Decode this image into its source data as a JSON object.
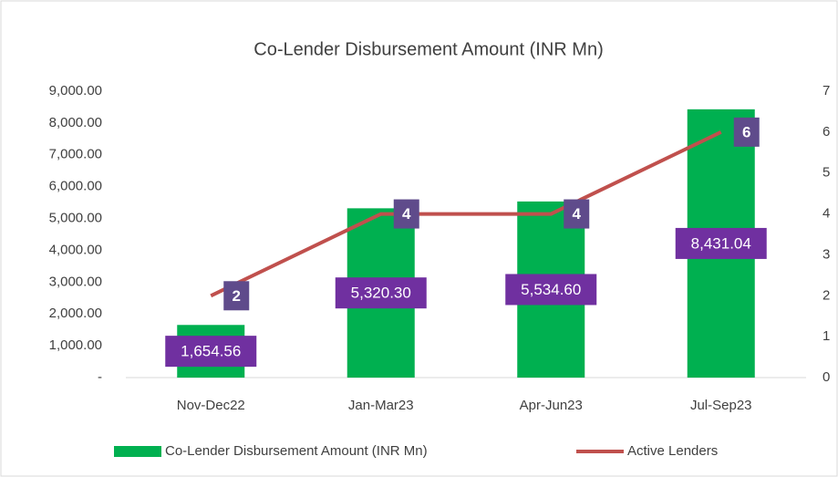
{
  "chart_data": {
    "type": "bar",
    "title": "Co-Lender Disbursement Amount (INR Mn)",
    "categories": [
      "Nov-Dec22",
      "Jan-Mar23",
      "Apr-Jun23",
      "Jul-Sep23"
    ],
    "series": [
      {
        "name": "Co-Lender Disbursement Amount (INR Mn)",
        "type": "bar",
        "color": "#00b050",
        "values": [
          1654.56,
          5320.3,
          5534.6,
          8431.04
        ],
        "value_labels": [
          "1,654.56",
          "5,320.30",
          "5,534.60",
          "8,431.04"
        ],
        "label_color": "#7030a0"
      },
      {
        "name": "Active Lenders",
        "type": "line",
        "axis": "y2",
        "color": "#c0504d",
        "values": [
          2,
          4,
          4,
          6
        ],
        "label_color": "#5f4b8b"
      }
    ],
    "ylim": [
      0,
      9000
    ],
    "yticks": [
      {
        "value": 0,
        "label": "-"
      },
      {
        "value": 1000,
        "label": "1,000.00"
      },
      {
        "value": 2000,
        "label": "2,000.00"
      },
      {
        "value": 3000,
        "label": "3,000.00"
      },
      {
        "value": 4000,
        "label": "4,000.00"
      },
      {
        "value": 5000,
        "label": "5,000.00"
      },
      {
        "value": 6000,
        "label": "6,000.00"
      },
      {
        "value": 7000,
        "label": "7,000.00"
      },
      {
        "value": 8000,
        "label": "8,000.00"
      },
      {
        "value": 9000,
        "label": "9,000.00"
      }
    ],
    "y2lim": [
      0,
      7
    ],
    "y2ticks": [
      0,
      1,
      2,
      3,
      4,
      5,
      6,
      7
    ],
    "grid": false,
    "legend": "bottom"
  }
}
